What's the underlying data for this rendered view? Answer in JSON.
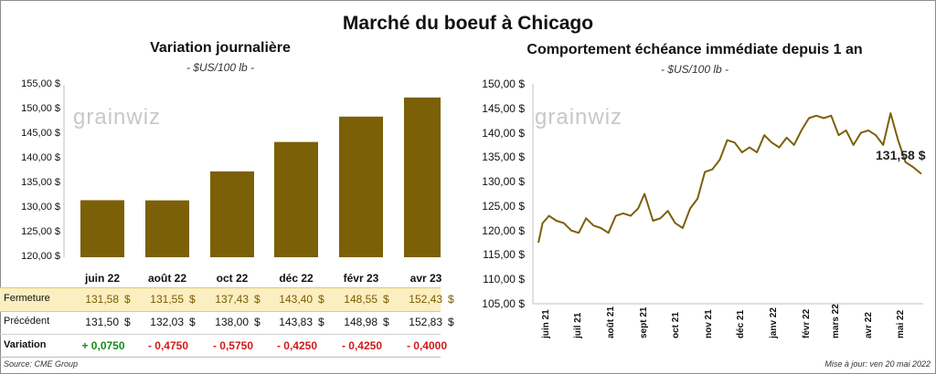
{
  "title": "Marché du boeuf à Chicago",
  "left": {
    "subtitle": "Variation journalière",
    "unit": "- $US/100 lb -",
    "yticks": [
      "155,00 $",
      "150,00 $",
      "145,00 $",
      "140,00 $",
      "135,00 $",
      "130,00 $",
      "125,00 $",
      "120,00 $"
    ],
    "logo": "grainwiz"
  },
  "right": {
    "subtitle": "Comportement échéance immédiate depuis 1 an",
    "unit": "- $US/100 lb -",
    "yticks": [
      "150,00 $",
      "145,00 $",
      "140,00 $",
      "135,00 $",
      "130,00 $",
      "125,00 $",
      "120,00 $",
      "115,00 $",
      "110,00 $",
      "105,00 $"
    ],
    "xticks": [
      "juin 21",
      "juil 21",
      "août 21",
      "sept 21",
      "oct 21",
      "nov 21",
      "déc 21",
      "janv 22",
      "févr 22",
      "mars 22",
      "avr 22",
      "mai 22"
    ],
    "last_label": "131,58 $",
    "logo": "grainwiz"
  },
  "table": {
    "row1_label": "Fermeture",
    "row2_label": "Précédent",
    "row3_label": "Variation",
    "dollar": "$",
    "fermeture": [
      "131,58",
      "131,55",
      "137,43",
      "143,40",
      "148,55",
      "152,43"
    ],
    "precedent": [
      "131,50",
      "132,03",
      "138,00",
      "143,83",
      "148,98",
      "152,83"
    ],
    "variation": [
      "+ 0,0750",
      "- 0,4750",
      "- 0,5750",
      "- 0,4250",
      "- 0,4250",
      "- 0,4000"
    ]
  },
  "footer": {
    "source": "Source: CME Group",
    "updated": "Mise à jour: ven 20 mai 2022"
  },
  "colors": {
    "bar": "#7b6008",
    "line": "#7b6008",
    "highlight_row": "#fbeec0",
    "positive": "#1a8a1a",
    "negative": "#d01a1a",
    "grid": "#d9d9d9"
  },
  "chart_data": [
    {
      "type": "bar",
      "title": "Variation journalière",
      "categories": [
        "juin 22",
        "août 22",
        "oct 22",
        "déc 22",
        "févr 23",
        "avr 23"
      ],
      "values": [
        131.58,
        131.55,
        137.43,
        143.4,
        148.55,
        152.43
      ],
      "ylim": [
        120,
        155
      ],
      "grid": false
    },
    {
      "type": "line",
      "title": "Comportement échéance immédiate depuis 1 an",
      "x": [
        "2021-05-24",
        "2021-05-28",
        "2021-06-03",
        "2021-06-10",
        "2021-06-17",
        "2021-06-24",
        "2021-07-01",
        "2021-07-08",
        "2021-07-15",
        "2021-07-22",
        "2021-07-29",
        "2021-08-05",
        "2021-08-12",
        "2021-08-19",
        "2021-08-26",
        "2021-09-01",
        "2021-09-09",
        "2021-09-16",
        "2021-09-23",
        "2021-09-30",
        "2021-10-07",
        "2021-10-14",
        "2021-10-21",
        "2021-10-28",
        "2021-11-04",
        "2021-11-11",
        "2021-11-18",
        "2021-11-25",
        "2021-12-02",
        "2021-12-09",
        "2021-12-16",
        "2021-12-23",
        "2021-12-30",
        "2022-01-06",
        "2022-01-13",
        "2022-01-20",
        "2022-01-27",
        "2022-02-03",
        "2022-02-10",
        "2022-02-17",
        "2022-02-24",
        "2022-03-03",
        "2022-03-10",
        "2022-03-17",
        "2022-03-24",
        "2022-03-31",
        "2022-04-07",
        "2022-04-14",
        "2022-04-21",
        "2022-04-28",
        "2022-05-05",
        "2022-05-12",
        "2022-05-20"
      ],
      "values": [
        117.5,
        121.5,
        123.0,
        122.0,
        121.5,
        120.0,
        119.5,
        122.5,
        121.0,
        120.5,
        119.5,
        123.0,
        123.5,
        123.0,
        124.5,
        127.5,
        122.0,
        122.5,
        124.0,
        121.5,
        120.5,
        124.5,
        126.5,
        132.0,
        132.5,
        134.5,
        138.5,
        138.0,
        136.0,
        137.0,
        136.0,
        139.5,
        138.0,
        137.0,
        139.0,
        137.5,
        140.5,
        143.0,
        143.5,
        143.0,
        143.5,
        139.5,
        140.5,
        137.5,
        140.0,
        140.5,
        139.5,
        137.5,
        144.0,
        138.5,
        134.0,
        133.0,
        131.58
      ],
      "ylim": [
        105,
        150
      ],
      "last_label": "131,58 $",
      "grid": false
    }
  ]
}
